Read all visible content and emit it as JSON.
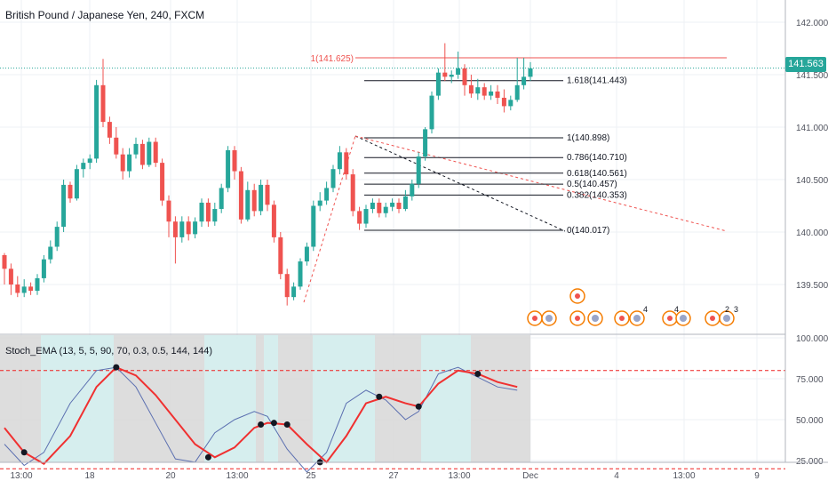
{
  "chart_data": {
    "type": "candlestick",
    "title": "British Pound / Japanese Yen, 240, FXCM",
    "last_price": "141.563",
    "y_ticks": [
      "142.000",
      "141.500",
      "141.000",
      "140.500",
      "140.000",
      "139.500"
    ],
    "x_ticks": [
      "13:00",
      "18",
      "20",
      "13:00",
      "25",
      "27",
      "13:00",
      "Dec",
      "4",
      "13:00",
      "9"
    ],
    "resistance_label": "1(141.625)",
    "fib_levels": [
      {
        "label": "1.618(141.443)",
        "value": 141.443
      },
      {
        "label": "1(140.898)",
        "value": 140.898
      },
      {
        "label": "0.786(140.710)",
        "value": 140.71
      },
      {
        "label": "0.618(140.561)",
        "value": 140.561
      },
      {
        "label": "0.5(140.457)",
        "value": 140.457
      },
      {
        "label": "0.382(140.353)",
        "value": 140.353
      },
      {
        "label": "0(140.017)",
        "value": 140.017
      }
    ],
    "event_labels": [
      "4",
      "4",
      "2",
      "3"
    ],
    "candles": [
      [
        139.78,
        139.65,
        139.8,
        139.5
      ],
      [
        139.65,
        139.5,
        139.7,
        139.4
      ],
      [
        139.5,
        139.42,
        139.58,
        139.38
      ],
      [
        139.42,
        139.48,
        139.55,
        139.38
      ],
      [
        139.48,
        139.44,
        139.52,
        139.4
      ],
      [
        139.44,
        139.56,
        139.6,
        139.4
      ],
      [
        139.56,
        139.74,
        139.78,
        139.52
      ],
      [
        139.74,
        139.86,
        139.92,
        139.7
      ],
      [
        139.86,
        140.05,
        140.1,
        139.82
      ],
      [
        140.05,
        140.45,
        140.5,
        140.0
      ],
      [
        140.45,
        140.32,
        140.48,
        140.28
      ],
      [
        140.32,
        140.6,
        140.64,
        140.3
      ],
      [
        140.6,
        140.66,
        140.7,
        140.52
      ],
      [
        140.66,
        140.7,
        140.74,
        140.6
      ],
      [
        140.7,
        141.4,
        141.45,
        140.66
      ],
      [
        141.4,
        141.05,
        141.65,
        141.0
      ],
      [
        141.05,
        140.9,
        141.1,
        140.84
      ],
      [
        140.9,
        140.74,
        141.0,
        140.7
      ],
      [
        140.74,
        140.58,
        140.8,
        140.5
      ],
      [
        140.58,
        140.74,
        140.8,
        140.52
      ],
      [
        140.74,
        140.84,
        140.9,
        140.7
      ],
      [
        140.84,
        140.64,
        140.88,
        140.6
      ],
      [
        140.64,
        140.86,
        140.9,
        140.62
      ],
      [
        140.86,
        140.66,
        140.9,
        140.62
      ],
      [
        140.66,
        140.3,
        140.7,
        140.25
      ],
      [
        140.3,
        140.1,
        140.35,
        139.95
      ],
      [
        140.1,
        139.95,
        140.15,
        139.7
      ],
      [
        139.95,
        140.1,
        140.15,
        139.9
      ],
      [
        140.1,
        139.98,
        140.15,
        139.92
      ],
      [
        139.98,
        140.1,
        140.14,
        139.94
      ],
      [
        140.1,
        140.28,
        140.32,
        140.05
      ],
      [
        140.28,
        140.1,
        140.32,
        140.05
      ],
      [
        140.1,
        140.22,
        140.28,
        140.06
      ],
      [
        140.22,
        140.42,
        140.46,
        140.18
      ],
      [
        140.42,
        140.78,
        140.82,
        140.38
      ],
      [
        140.78,
        140.58,
        140.82,
        140.5
      ],
      [
        140.58,
        140.12,
        140.62,
        140.08
      ],
      [
        140.12,
        140.4,
        140.48,
        140.1
      ],
      [
        140.4,
        140.2,
        140.46,
        140.15
      ],
      [
        140.2,
        140.45,
        140.5,
        140.16
      ],
      [
        140.45,
        140.26,
        140.5,
        140.2
      ],
      [
        140.26,
        139.95,
        140.3,
        139.9
      ],
      [
        139.95,
        139.6,
        140.0,
        139.55
      ],
      [
        139.6,
        139.38,
        139.65,
        139.3
      ],
      [
        139.38,
        139.48,
        139.52,
        139.35
      ],
      [
        139.48,
        139.72,
        139.75,
        139.45
      ],
      [
        139.72,
        139.86,
        139.9,
        139.68
      ],
      [
        139.86,
        140.25,
        140.3,
        139.82
      ],
      [
        140.25,
        140.3,
        140.38,
        140.2
      ],
      [
        140.3,
        140.42,
        140.48,
        140.26
      ],
      [
        140.42,
        140.6,
        140.64,
        140.38
      ],
      [
        140.6,
        140.76,
        140.82,
        140.55
      ],
      [
        140.76,
        140.55,
        140.8,
        140.5
      ],
      [
        140.55,
        140.2,
        140.6,
        140.15
      ],
      [
        140.2,
        140.08,
        140.24,
        140.02
      ],
      [
        140.08,
        140.22,
        140.26,
        140.04
      ],
      [
        140.22,
        140.28,
        140.32,
        140.18
      ],
      [
        140.28,
        140.18,
        140.32,
        140.14
      ],
      [
        140.18,
        140.24,
        140.28,
        140.14
      ],
      [
        140.24,
        140.28,
        140.32,
        140.2
      ],
      [
        140.28,
        140.22,
        140.32,
        140.18
      ],
      [
        140.22,
        140.34,
        140.4,
        140.2
      ],
      [
        140.34,
        140.46,
        140.5,
        140.3
      ],
      [
        140.46,
        140.72,
        140.76,
        140.42
      ],
      [
        140.72,
        140.98,
        141.0,
        140.68
      ],
      [
        140.98,
        141.3,
        141.34,
        140.94
      ],
      [
        141.3,
        141.52,
        141.56,
        141.26
      ],
      [
        141.52,
        141.48,
        141.8,
        141.44
      ],
      [
        141.48,
        141.5,
        141.54,
        141.42
      ],
      [
        141.5,
        141.56,
        141.72,
        141.46
      ],
      [
        141.56,
        141.4,
        141.6,
        141.3
      ],
      [
        141.4,
        141.32,
        141.5,
        141.28
      ],
      [
        141.32,
        141.38,
        141.46,
        141.26
      ],
      [
        141.38,
        141.3,
        141.42,
        141.26
      ],
      [
        141.3,
        141.34,
        141.4,
        141.26
      ],
      [
        141.34,
        141.28,
        141.4,
        141.22
      ],
      [
        141.28,
        141.2,
        141.36,
        141.14
      ],
      [
        141.2,
        141.26,
        141.3,
        141.16
      ],
      [
        141.26,
        141.4,
        141.66,
        141.24
      ],
      [
        141.4,
        141.48,
        141.66,
        141.36
      ],
      [
        141.48,
        141.56,
        141.62,
        141.44
      ]
    ],
    "indicator": {
      "name": "Stoch_EMA (13, 5, 5, 90, 70, 0.3, 0.5, 144, 144)",
      "y_ticks": [
        "100.000",
        "75.000",
        "50.000",
        "25.000"
      ],
      "upper_level": 80,
      "lower_level": 20,
      "signal": [
        [
          0,
          45
        ],
        [
          3,
          30
        ],
        [
          6,
          23
        ],
        [
          10,
          40
        ],
        [
          14,
          70
        ],
        [
          17,
          82
        ],
        [
          20,
          77
        ],
        [
          23,
          65
        ],
        [
          26,
          50
        ],
        [
          29,
          35
        ],
        [
          32,
          27
        ],
        [
          35,
          33
        ],
        [
          38,
          45
        ],
        [
          40,
          48
        ],
        [
          43,
          47
        ],
        [
          46,
          35
        ],
        [
          49,
          24
        ],
        [
          52,
          40
        ],
        [
          55,
          60
        ],
        [
          58,
          64
        ],
        [
          61,
          60
        ],
        [
          63,
          58
        ],
        [
          66,
          72
        ],
        [
          69,
          80
        ],
        [
          72,
          78
        ],
        [
          75,
          73
        ],
        [
          78,
          70
        ]
      ],
      "fast": [
        [
          0,
          35
        ],
        [
          3,
          22
        ],
        [
          6,
          30
        ],
        [
          10,
          60
        ],
        [
          14,
          80
        ],
        [
          17,
          82
        ],
        [
          20,
          70
        ],
        [
          23,
          48
        ],
        [
          26,
          26
        ],
        [
          29,
          24
        ],
        [
          32,
          42
        ],
        [
          35,
          50
        ],
        [
          38,
          55
        ],
        [
          40,
          52
        ],
        [
          43,
          32
        ],
        [
          46,
          18
        ],
        [
          49,
          30
        ],
        [
          52,
          60
        ],
        [
          55,
          68
        ],
        [
          58,
          62
        ],
        [
          61,
          50
        ],
        [
          63,
          55
        ],
        [
          66,
          78
        ],
        [
          69,
          82
        ],
        [
          72,
          76
        ],
        [
          75,
          70
        ],
        [
          78,
          68
        ]
      ]
    }
  }
}
